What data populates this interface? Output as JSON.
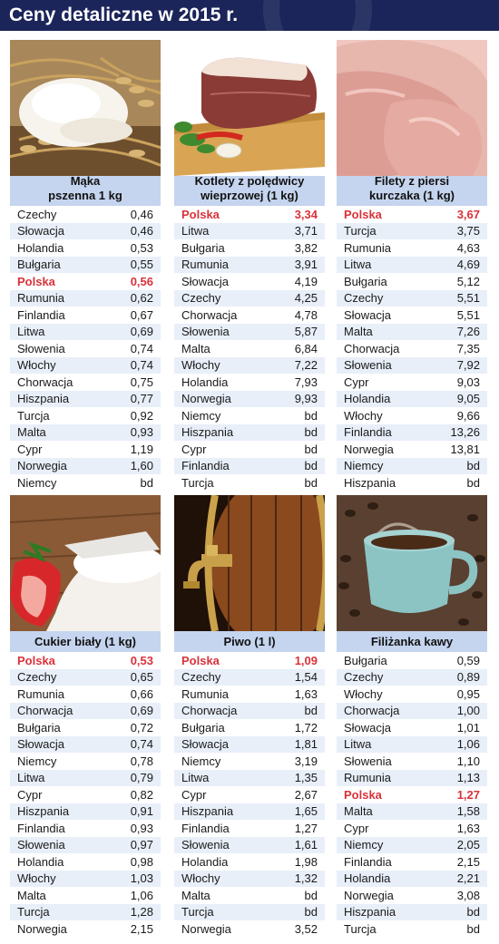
{
  "title": "Ceny detaliczne w 2015 r.",
  "highlight_color": "#d9323a",
  "header_color": "#1b2559",
  "caption_bg": "#c5d5ef",
  "chart_data": [
    {
      "type": "table",
      "title": "Mąka pszenna 1 kg",
      "highlight": "Polska",
      "rows": [
        [
          "Czechy",
          "0,46"
        ],
        [
          "Słowacja",
          "0,46"
        ],
        [
          "Holandia",
          "0,53"
        ],
        [
          "Bułgaria",
          "0,55"
        ],
        [
          "Polska",
          "0,56"
        ],
        [
          "Rumunia",
          "0,62"
        ],
        [
          "Finlandia",
          "0,67"
        ],
        [
          "Litwa",
          "0,69"
        ],
        [
          "Słowenia",
          "0,74"
        ],
        [
          "Włochy",
          "0,74"
        ],
        [
          "Chorwacja",
          "0,75"
        ],
        [
          "Hiszpania",
          "0,77"
        ],
        [
          "Turcja",
          "0,92"
        ],
        [
          "Malta",
          "0,93"
        ],
        [
          "Cypr",
          "1,19"
        ],
        [
          "Norwegia",
          "1,60"
        ],
        [
          "Niemcy",
          "bd"
        ]
      ]
    },
    {
      "type": "table",
      "title": "Kotlety z polędwicy wieprzowej (1 kg)",
      "highlight": "Polska",
      "rows": [
        [
          "Polska",
          "3,34"
        ],
        [
          "Litwa",
          "3,71"
        ],
        [
          "Bułgaria",
          "3,82"
        ],
        [
          "Rumunia",
          "3,91"
        ],
        [
          "Słowacja",
          "4,19"
        ],
        [
          "Czechy",
          "4,25"
        ],
        [
          "Chorwacja",
          "4,78"
        ],
        [
          "Słowenia",
          "5,87"
        ],
        [
          "Malta",
          "6,84"
        ],
        [
          "Włochy",
          "7,22"
        ],
        [
          "Holandia",
          "7,93"
        ],
        [
          "Norwegia",
          "9,93"
        ],
        [
          "Niemcy",
          "bd"
        ],
        [
          "Hiszpania",
          "bd"
        ],
        [
          "Cypr",
          "bd"
        ],
        [
          "Finlandia",
          "bd"
        ],
        [
          "Turcja",
          "bd"
        ]
      ]
    },
    {
      "type": "table",
      "title": "Filety z piersi kurczaka (1 kg)",
      "highlight": "Polska",
      "rows": [
        [
          "Polska",
          "3,67"
        ],
        [
          "Turcja",
          "3,75"
        ],
        [
          "Rumunia",
          "4,63"
        ],
        [
          "Litwa",
          "4,69"
        ],
        [
          "Bułgaria",
          "5,12"
        ],
        [
          "Czechy",
          "5,51"
        ],
        [
          "Słowacja",
          "5,51"
        ],
        [
          "Malta",
          "7,26"
        ],
        [
          "Chorwacja",
          "7,35"
        ],
        [
          "Słowenia",
          "7,92"
        ],
        [
          "Cypr",
          "9,03"
        ],
        [
          "Holandia",
          "9,05"
        ],
        [
          "Włochy",
          "9,66"
        ],
        [
          "Finlandia",
          "13,26"
        ],
        [
          "Norwegia",
          "13,81"
        ],
        [
          "Niemcy",
          "bd"
        ],
        [
          "Hiszpania",
          "bd"
        ]
      ]
    },
    {
      "type": "table",
      "title": "Cukier biały (1 kg)",
      "highlight": "Polska",
      "rows": [
        [
          "Polska",
          "0,53"
        ],
        [
          "Czechy",
          "0,65"
        ],
        [
          "Rumunia",
          "0,66"
        ],
        [
          "Chorwacja",
          "0,69"
        ],
        [
          "Bułgaria",
          "0,72"
        ],
        [
          "Słowacja",
          "0,74"
        ],
        [
          "Niemcy",
          "0,78"
        ],
        [
          "Litwa",
          "0,79"
        ],
        [
          "Cypr",
          "0,82"
        ],
        [
          "Hiszpania",
          "0,91"
        ],
        [
          "Finlandia",
          "0,93"
        ],
        [
          "Słowenia",
          "0,97"
        ],
        [
          "Holandia",
          "0,98"
        ],
        [
          "Włochy",
          "1,03"
        ],
        [
          "Malta",
          "1,06"
        ],
        [
          "Turcja",
          "1,28"
        ],
        [
          "Norwegia",
          "2,15"
        ]
      ]
    },
    {
      "type": "table",
      "title": "Piwo (1 l)",
      "highlight": "Polska",
      "rows": [
        [
          "Polska",
          "1,09"
        ],
        [
          "Czechy",
          "1,54"
        ],
        [
          "Rumunia",
          "1,63"
        ],
        [
          "Chorwacja",
          "bd"
        ],
        [
          "Bułgaria",
          "1,72"
        ],
        [
          "Słowacja",
          "1,81"
        ],
        [
          "Niemcy",
          "3,19"
        ],
        [
          "Litwa",
          "1,35"
        ],
        [
          "Cypr",
          "2,67"
        ],
        [
          "Hiszpania",
          "1,65"
        ],
        [
          "Finlandia",
          "1,27"
        ],
        [
          "Słowenia",
          "1,61"
        ],
        [
          "Holandia",
          "1,98"
        ],
        [
          "Włochy",
          "1,32"
        ],
        [
          "Malta",
          "bd"
        ],
        [
          "Turcja",
          "bd"
        ],
        [
          "Norwegia",
          "3,52"
        ]
      ]
    },
    {
      "type": "table",
      "title": "Filiżanka kawy",
      "highlight": "Polska",
      "rows": [
        [
          "Bułgaria",
          "0,59"
        ],
        [
          "Czechy",
          "0,89"
        ],
        [
          "Włochy",
          "0,95"
        ],
        [
          "Chorwacja",
          "1,00"
        ],
        [
          "Słowacja",
          "1,01"
        ],
        [
          "Litwa",
          "1,06"
        ],
        [
          "Słowenia",
          "1,10"
        ],
        [
          "Rumunia",
          "1,13"
        ],
        [
          "Polska",
          "1,27"
        ],
        [
          "Malta",
          "1,58"
        ],
        [
          "Cypr",
          "1,63"
        ],
        [
          "Niemcy",
          "2,05"
        ],
        [
          "Finlandia",
          "2,15"
        ],
        [
          "Holandia",
          "2,21"
        ],
        [
          "Norwegia",
          "3,08"
        ],
        [
          "Hiszpania",
          "bd"
        ],
        [
          "Turcja",
          "bd"
        ]
      ]
    }
  ],
  "captions": [
    [
      "Mąka",
      "pszenna 1 kg"
    ],
    [
      "Kotlety z polędwicy",
      "wieprzowej (1 kg)"
    ],
    [
      "Filety z piersi",
      "kurczaka (1 kg)"
    ],
    [
      "Cukier biały (1 kg)"
    ],
    [
      "Piwo (1 l)"
    ],
    [
      "Filiżanka kawy"
    ]
  ],
  "images": [
    "flour-wheat-photo",
    "pork-loin-photo",
    "chicken-breast-photo",
    "sugar-strawberry-photo",
    "beer-barrel-tap-photo",
    "coffee-cup-photo"
  ]
}
